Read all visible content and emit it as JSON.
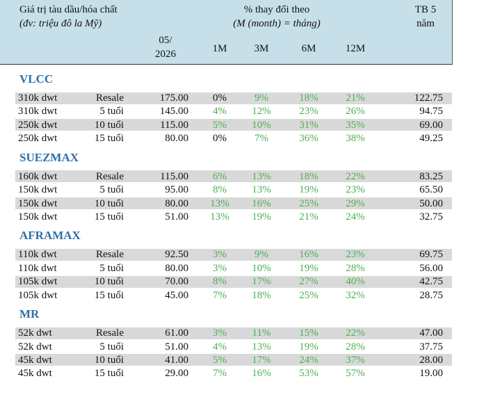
{
  "header": {
    "title": "Giá trị tàu dầu/hóa chất",
    "unit": "(đv: triệu đô la Mỹ)",
    "change_title": "% thay đổi theo",
    "change_note": "(M (month) = tháng)",
    "avg_line1": "TB 5",
    "avg_line2": "năm",
    "date_line1": "05/",
    "date_line2": "2026",
    "periods": [
      "1M",
      "3M",
      "6M",
      "12M"
    ]
  },
  "sections": [
    {
      "name": "VLCC",
      "rows": [
        [
          "310k dwt",
          "Resale",
          "175.00",
          "0%",
          "9%",
          "18%",
          "21%",
          "122.75"
        ],
        [
          "310k dwt",
          "5 tuổi",
          "145.00",
          "4%",
          "12%",
          "23%",
          "26%",
          "94.75"
        ],
        [
          "250k dwt",
          "10 tuổi",
          "115.00",
          "5%",
          "10%",
          "31%",
          "35%",
          "69.00"
        ],
        [
          "250k dwt",
          "15 tuổi",
          "80.00",
          "0%",
          "7%",
          "36%",
          "38%",
          "49.25"
        ]
      ]
    },
    {
      "name": "SUEZMAX",
      "rows": [
        [
          "160k dwt",
          "Resale",
          "115.00",
          "6%",
          "13%",
          "18%",
          "22%",
          "83.25"
        ],
        [
          "150k dwt",
          "5 tuổi",
          "95.00",
          "8%",
          "13%",
          "19%",
          "23%",
          "65.50"
        ],
        [
          "150k dwt",
          "10 tuổi",
          "80.00",
          "13%",
          "16%",
          "25%",
          "29%",
          "50.00"
        ],
        [
          "150k dwt",
          "15 tuổi",
          "51.00",
          "13%",
          "19%",
          "21%",
          "24%",
          "32.75"
        ]
      ]
    },
    {
      "name": "AFRAMAX",
      "rows": [
        [
          "110k dwt",
          "Resale",
          "92.50",
          "3%",
          "9%",
          "16%",
          "23%",
          "69.75"
        ],
        [
          "110k dwt",
          "5 tuổi",
          "80.00",
          "3%",
          "10%",
          "19%",
          "28%",
          "56.00"
        ],
        [
          "105k dwt",
          "10 tuổi",
          "70.00",
          "8%",
          "17%",
          "27%",
          "40%",
          "42.75"
        ],
        [
          "105k dwt",
          "15 tuổi",
          "45.00",
          "7%",
          "18%",
          "25%",
          "32%",
          "28.75"
        ]
      ]
    },
    {
      "name": "MR",
      "rows": [
        [
          "52k dwt",
          "Resale",
          "61.00",
          "3%",
          "11%",
          "15%",
          "22%",
          "47.00"
        ],
        [
          "52k dwt",
          "5 tuổi",
          "51.00",
          "4%",
          "13%",
          "19%",
          "28%",
          "37.75"
        ],
        [
          "45k dwt",
          "10 tuổi",
          "41.00",
          "5%",
          "17%",
          "24%",
          "37%",
          "28.00"
        ],
        [
          "45k dwt",
          "15 tuổi",
          "29.00",
          "7%",
          "16%",
          "53%",
          "57%",
          "19.00"
        ]
      ]
    }
  ]
}
